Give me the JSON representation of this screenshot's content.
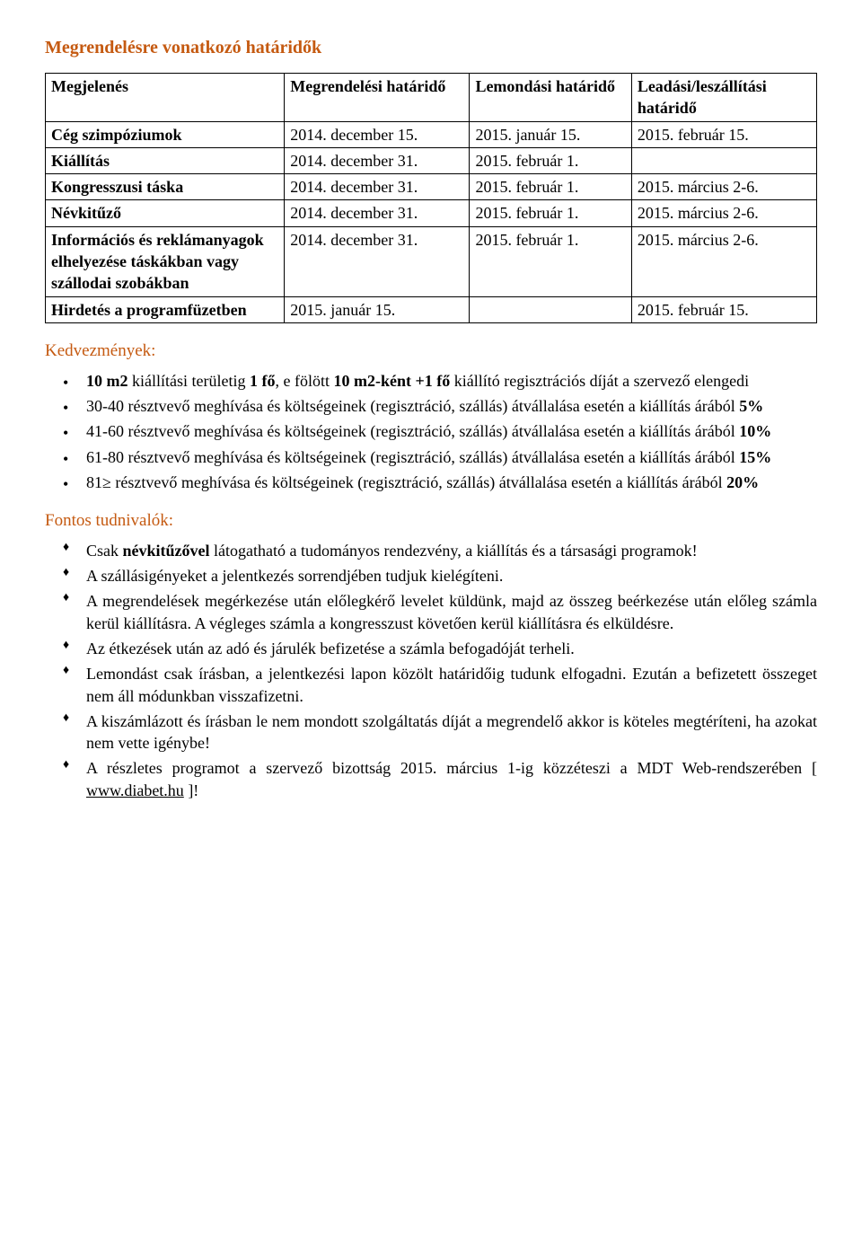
{
  "title": "Megrendelésre vonatkozó határidők",
  "table": {
    "headers": [
      "Megjelenés",
      "Megrendelési határidő",
      "Lemondási határidő",
      "Leadási/leszállítási határidő"
    ],
    "rows": [
      [
        "Cég szimpóziumok",
        "2014. december 15.",
        "2015. január 15.",
        "2015. február 15."
      ],
      [
        "Kiállítás",
        "2014. december 31.",
        "2015. február 1.",
        ""
      ],
      [
        "Kongresszusi táska",
        "2014. december 31.",
        "2015. február 1.",
        "2015. március 2-6."
      ],
      [
        "Névkitűző",
        "2014. december 31.",
        "2015. február 1.",
        "2015. március 2-6."
      ],
      [
        "Információs és reklámanyagok elhelyezése táskákban vagy szállodai szobákban",
        "2014. december 31.",
        "2015. február 1.",
        "2015. március 2-6."
      ],
      [
        "Hirdetés a programfüzetben",
        "2015. január 15.",
        "",
        "2015. február 15."
      ]
    ]
  },
  "kedv_title": "Kedvezmények:",
  "kedv_items": {
    "i0": {
      "pre": "10 m2",
      "mid": " kiállítási területig ",
      "b1": "1 fő",
      "mid2": ", e fölött ",
      "b2": "10 m2-ként +1 fő",
      "rest": " kiállító regisztrációs díját a szervező elengedi"
    },
    "i1": {
      "text": "30-40 résztvevő meghívása és költségeinek (regisztráció, szállás) átvállalása esetén a kiállítás árából ",
      "pct": "5%"
    },
    "i2": {
      "text": "41-60 résztvevő meghívása és költségeinek (regisztráció, szállás) átvállalása esetén a kiállítás árából ",
      "pct": "10%"
    },
    "i3": {
      "text": "61-80 résztvevő meghívása és költségeinek (regisztráció, szállás) átvállalása esetén a kiállítás árából ",
      "pct": "15%"
    },
    "i4": {
      "text": "81≥ résztvevő meghívása és költségeinek (regisztráció, szállás) átvállalása esetén a kiállítás árából ",
      "pct": "20%"
    }
  },
  "fontos_title": "Fontos tudnivalók:",
  "fontos_items": {
    "i0": {
      "pre": "Csak ",
      "b": "névkitűzővel",
      "rest": " látogatható a tudományos rendezvény, a kiállítás és a társasági programok!"
    },
    "i1": "A szállásigényeket a jelentkezés sorrendjében tudjuk kielégíteni.",
    "i2": "A megrendelések megérkezése után előlegkérő levelet küldünk, majd az összeg beérkezése után előleg számla kerül kiállításra. A végleges számla a kongresszust követően kerül kiállításra és elküldésre.",
    "i3": "Az étkezések után az adó és járulék befizetése a számla befogadóját terheli.",
    "i4": "Lemondást csak írásban, a jelentkezési lapon közölt határidőig tudunk elfogadni. Ezután a befizetett összeget nem áll módunkban visszafizetni.",
    "i5": "A kiszámlázott és írásban le nem mondott szolgáltatás díját a megrendelő akkor is köteles megtéríteni, ha azokat nem vette igénybe!",
    "i6": {
      "pre": "A részletes programot a szervező bizottság 2015. március 1-ig közzéteszi a MDT Web-rendszerében [ ",
      "link": "www.diabet.hu",
      "post": " ]!"
    }
  },
  "colors": {
    "accent": "#c55a11",
    "text": "#000000",
    "link": "#0000ee"
  }
}
